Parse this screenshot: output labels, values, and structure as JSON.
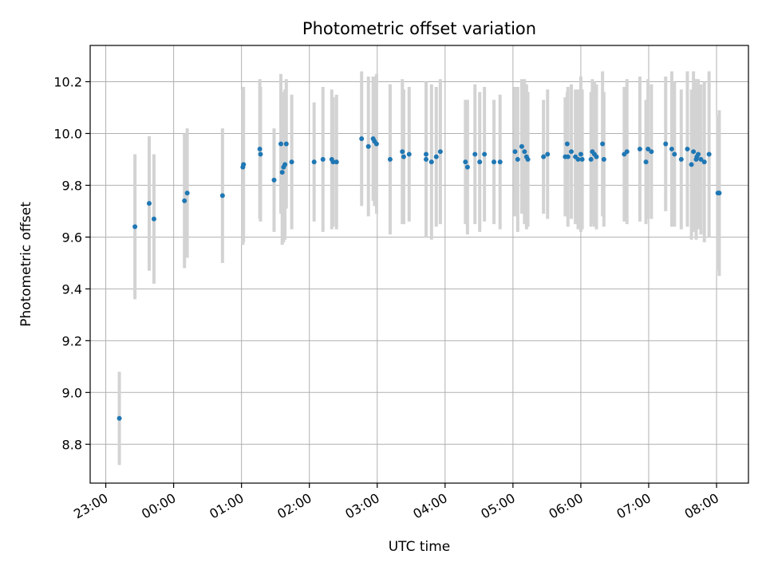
{
  "chart_data": {
    "type": "scatter",
    "title": "Photometric offset variation",
    "xlabel": "UTC time",
    "ylabel": "Photometric offset",
    "x_unit": "UTC time (hours from 23:00; values past 24 are the next day)",
    "xlim": [
      22.77,
      32.47
    ],
    "ylim": [
      8.65,
      10.34
    ],
    "xticks": [
      23,
      24,
      25,
      26,
      27,
      28,
      29,
      30,
      31,
      32
    ],
    "xtick_labels": [
      "23:00",
      "00:00",
      "01:00",
      "02:00",
      "03:00",
      "04:00",
      "05:00",
      "06:00",
      "07:00",
      "08:00"
    ],
    "yticks": [
      8.8,
      9.0,
      9.2,
      9.4,
      9.6,
      9.8,
      10.0,
      10.2
    ],
    "ytick_labels": [
      "8.8",
      "9.0",
      "9.2",
      "9.4",
      "9.6",
      "9.8",
      "10.0",
      "10.2"
    ],
    "grid": true,
    "marker_color": "#1f77b4",
    "errorbar_color": "#d3d3d3",
    "series": [
      {
        "x": [
          23.2,
          23.43,
          23.64,
          23.71,
          24.16,
          24.2,
          24.72,
          25.02,
          25.03,
          25.27,
          25.28,
          25.48,
          25.58,
          25.6,
          25.62,
          25.64,
          25.66,
          25.74,
          26.07,
          26.2,
          26.33,
          26.35,
          26.4,
          26.77,
          26.87,
          26.94,
          26.96,
          26.99,
          27.19,
          27.37,
          27.39,
          27.47,
          27.72,
          27.72,
          27.8,
          27.87,
          27.93,
          28.3,
          28.33,
          28.44,
          28.51,
          28.58,
          28.72,
          28.81,
          29.03,
          29.07,
          29.13,
          29.17,
          29.2,
          29.22,
          29.45,
          29.51,
          29.77,
          29.8,
          29.81,
          29.86,
          29.92,
          29.96,
          30.0,
          30.02,
          30.15,
          30.17,
          30.2,
          30.23,
          30.32,
          30.34,
          30.64,
          30.68,
          30.87,
          30.96,
          30.99,
          31.04,
          31.25,
          31.34,
          31.38,
          31.48,
          31.57,
          31.63,
          31.66,
          31.7,
          31.71,
          31.73,
          31.77,
          31.82,
          31.89,
          32.02,
          32.04
        ],
        "y": [
          8.9,
          9.64,
          9.73,
          9.67,
          9.74,
          9.77,
          9.76,
          9.87,
          9.88,
          9.94,
          9.92,
          9.82,
          9.96,
          9.85,
          9.87,
          9.88,
          9.96,
          9.89,
          9.89,
          9.9,
          9.9,
          9.89,
          9.89,
          9.98,
          9.95,
          9.98,
          9.97,
          9.96,
          9.9,
          9.93,
          9.91,
          9.92,
          9.92,
          9.9,
          9.89,
          9.91,
          9.93,
          9.89,
          9.87,
          9.92,
          9.89,
          9.92,
          9.89,
          9.89,
          9.93,
          9.9,
          9.95,
          9.93,
          9.91,
          9.9,
          9.91,
          9.92,
          9.91,
          9.96,
          9.91,
          9.93,
          9.91,
          9.9,
          9.92,
          9.9,
          9.9,
          9.93,
          9.92,
          9.91,
          9.96,
          9.9,
          9.92,
          9.93,
          9.94,
          9.89,
          9.94,
          9.93,
          9.96,
          9.94,
          9.92,
          9.9,
          9.94,
          9.88,
          9.93,
          9.9,
          9.91,
          9.92,
          9.9,
          9.89,
          9.92,
          9.77,
          9.77
        ],
        "yerr": [
          0.18,
          0.28,
          0.26,
          0.25,
          0.26,
          0.25,
          0.26,
          0.3,
          0.3,
          0.27,
          0.26,
          0.2,
          0.27,
          0.28,
          0.29,
          0.29,
          0.25,
          0.26,
          0.23,
          0.28,
          0.27,
          0.25,
          0.26,
          0.26,
          0.27,
          0.24,
          0.25,
          0.27,
          0.29,
          0.28,
          0.26,
          0.26,
          0.28,
          0.3,
          0.3,
          0.27,
          0.28,
          0.24,
          0.26,
          0.27,
          0.27,
          0.26,
          0.24,
          0.26,
          0.25,
          0.28,
          0.26,
          0.28,
          0.28,
          0.26,
          0.22,
          0.25,
          0.23,
          0.2,
          0.27,
          0.26,
          0.26,
          0.27,
          0.3,
          0.27,
          0.26,
          0.28,
          0.28,
          0.28,
          0.28,
          0.26,
          0.26,
          0.28,
          0.28,
          0.24,
          0.27,
          0.26,
          0.26,
          0.3,
          0.28,
          0.27,
          0.3,
          0.29,
          0.31,
          0.31,
          0.27,
          0.29,
          0.29,
          0.31,
          0.32,
          0.3,
          0.32
        ]
      }
    ]
  }
}
